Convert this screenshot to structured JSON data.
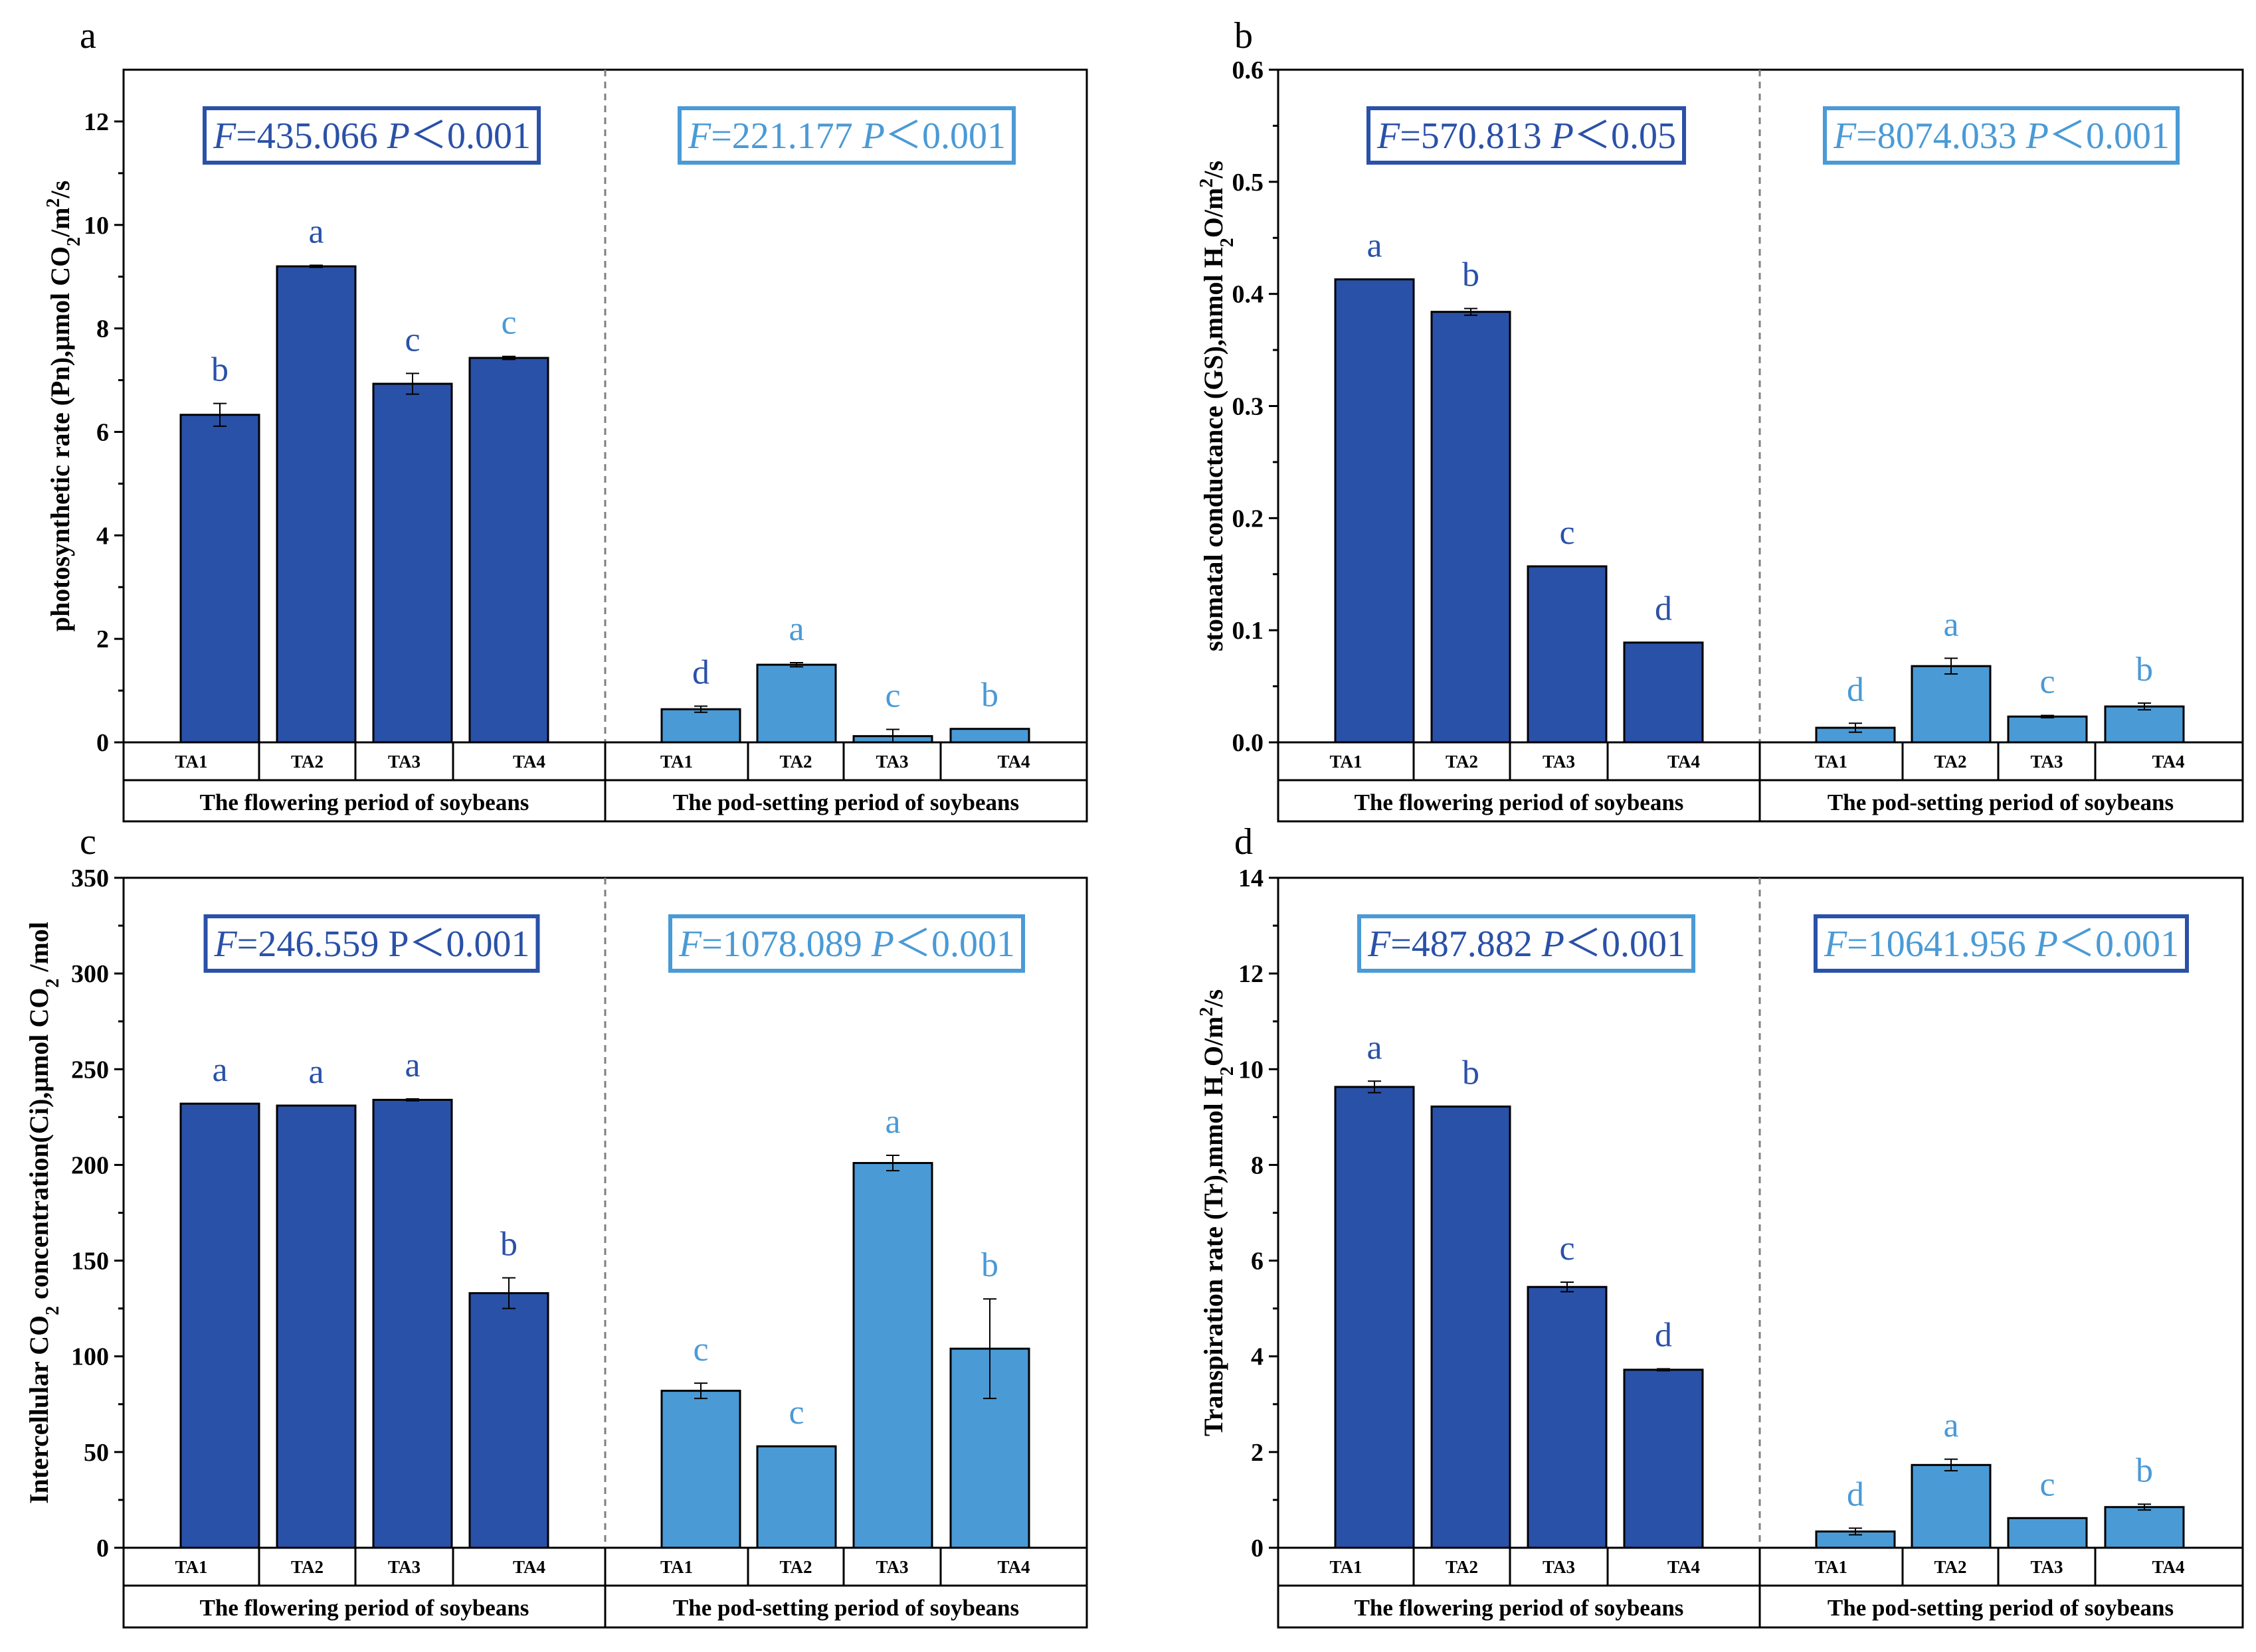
{
  "colors": {
    "flowering": "#2a51a8",
    "podsetting": "#4a9ad6",
    "axis": "#000000",
    "divider": "#7f7f7f"
  },
  "chart_data": [
    {
      "panel_label": "a",
      "type": "bar",
      "ylabel": [
        "photosynthetic rate (Pn),",
        "μmol CO",
        "2",
        "/m",
        "2",
        "/s"
      ],
      "ylim": [
        0,
        13
      ],
      "yticks": [
        "0",
        "2",
        "4",
        "6",
        "8",
        "10",
        "12"
      ],
      "period_labels": [
        "The flowering period of soybeans",
        "The pod-setting period of soybeans"
      ],
      "groups": [
        {
          "stat": {
            "F": "F",
            "Fval": "=435.066 ",
            "P": "P",
            "Pval": "＜0.001",
            "color": "#2a51a8"
          },
          "categories": [
            "TA1",
            "TA2",
            "TA3",
            "TA4"
          ],
          "values": [
            6.33,
            9.2,
            6.93,
            7.43
          ],
          "errors": [
            0.22,
            0.02,
            0.2,
            0.03
          ],
          "letters": [
            "b",
            "a",
            "c",
            "c"
          ],
          "letter_colors": [
            "#2a51a8",
            "#2a51a8",
            "#2a51a8",
            "#4a9ad6"
          ]
        },
        {
          "stat": {
            "F": "F",
            "Fval": "=221.177 ",
            "P": "P",
            "Pval": "＜0.001",
            "color": "#4a9ad6"
          },
          "categories": [
            "TA1",
            "TA2",
            "TA3",
            "TA4"
          ],
          "values": [
            0.64,
            1.5,
            0.12,
            0.26
          ],
          "errors": [
            0.06,
            0.04,
            0.13,
            0.0
          ],
          "letters": [
            "d",
            "a",
            "c",
            "b"
          ],
          "letter_colors": [
            "#2a51a8",
            "#4a9ad6",
            "#4a9ad6",
            "#4a9ad6"
          ]
        }
      ]
    },
    {
      "panel_label": "b",
      "type": "bar",
      "ylabel": [
        "stomatal conductance (GS),",
        "mmol H",
        "2",
        "O/m",
        "2",
        "/s"
      ],
      "ylim": [
        0,
        0.6
      ],
      "yticks": [
        "0.0",
        "0.1",
        "0.2",
        "0.3",
        "0.4",
        "0.5",
        "0.6"
      ],
      "period_labels": [
        "The flowering period of soybeans",
        "The pod-setting period of soybeans"
      ],
      "groups": [
        {
          "stat": {
            "F": "F",
            "Fval": "=570.813 ",
            "P": "P",
            "Pval": "＜0.05",
            "color": "#2a51a8"
          },
          "categories": [
            "TA1",
            "TA2",
            "TA3",
            "TA4"
          ],
          "values": [
            0.413,
            0.384,
            0.157,
            0.089
          ],
          "errors": [
            0.0,
            0.003,
            0.0,
            0.0
          ],
          "letters": [
            "a",
            "b",
            "c",
            "d"
          ],
          "letter_colors": [
            "#2a51a8",
            "#2a51a8",
            "#2a51a8",
            "#2a51a8"
          ]
        },
        {
          "stat": {
            "F": "F",
            "Fval": "=8074.033 ",
            "P": "P",
            "Pval": "＜0.001",
            "color": "#4a9ad6"
          },
          "categories": [
            "TA1",
            "TA2",
            "TA3",
            "TA4"
          ],
          "values": [
            0.013,
            0.068,
            0.023,
            0.032
          ],
          "errors": [
            0.004,
            0.007,
            0.001,
            0.003
          ],
          "letters": [
            "d",
            "a",
            "c",
            "b"
          ],
          "letter_colors": [
            "#4a9ad6",
            "#4a9ad6",
            "#4a9ad6",
            "#4a9ad6"
          ]
        }
      ]
    },
    {
      "panel_label": "c",
      "type": "bar",
      "ylabel": [
        "Intercellular CO",
        "2",
        " concentration(Ci),",
        "μmol CO",
        "2",
        " /mol"
      ],
      "ylim": [
        0,
        350
      ],
      "yticks": [
        "0",
        "50",
        "100",
        "150",
        "200",
        "250",
        "300",
        "350"
      ],
      "period_labels": [
        "The flowering period of soybeans",
        "The pod-setting period of soybeans"
      ],
      "groups": [
        {
          "stat": {
            "F": "F",
            "Fval": "=246.559 ",
            "P": "P",
            "Pval": "＜0.001",
            "color": "#2a51a8",
            "p_upright": true
          },
          "categories": [
            "TA1",
            "TA2",
            "TA3",
            "TA4"
          ],
          "values": [
            232,
            231,
            234,
            133
          ],
          "errors": [
            0,
            0,
            0.5,
            8
          ],
          "letters": [
            "a",
            "a",
            "a",
            "b"
          ],
          "letter_colors": [
            "#2a51a8",
            "#2a51a8",
            "#2a51a8",
            "#2a51a8"
          ]
        },
        {
          "stat": {
            "F": "F",
            "Fval": "=1078.089 ",
            "P": "P",
            "Pval": "＜0.001",
            "color": "#4a9ad6"
          },
          "categories": [
            "TA1",
            "TA2",
            "TA3",
            "TA4"
          ],
          "values": [
            82,
            53,
            201,
            104
          ],
          "errors": [
            4,
            0,
            4,
            26
          ],
          "letters": [
            "c",
            "c",
            "a",
            "b"
          ],
          "letter_colors": [
            "#4a9ad6",
            "#4a9ad6",
            "#4a9ad6",
            "#4a9ad6"
          ]
        }
      ]
    },
    {
      "panel_label": "d",
      "type": "bar",
      "ylabel": [
        "Transpiration rate (Tr),",
        "mmol H",
        "2",
        "O/m",
        "2",
        "/s"
      ],
      "ylim": [
        0,
        14
      ],
      "yticks": [
        "0",
        "2",
        "4",
        "6",
        "8",
        "10",
        "12",
        "14"
      ],
      "period_labels": [
        "The flowering period of soybeans",
        "The pod-setting period of soybeans"
      ],
      "groups": [
        {
          "stat": {
            "F": "F",
            "Fval": "=487.882 ",
            "P": "P",
            "Pval": "＜0.001",
            "color": "#4a9ad6",
            "text_color": "#2a51a8"
          },
          "categories": [
            "TA1",
            "TA2",
            "TA3",
            "TA4"
          ],
          "values": [
            9.63,
            9.22,
            5.45,
            3.72
          ],
          "errors": [
            0.12,
            0.0,
            0.1,
            0.02
          ],
          "letters": [
            "a",
            "b",
            "c",
            "d"
          ],
          "letter_colors": [
            "#2a51a8",
            "#2a51a8",
            "#2a51a8",
            "#2a51a8"
          ]
        },
        {
          "stat": {
            "F": "F",
            "Fval": "=10641.956 ",
            "P": "P",
            "Pval": "＜0.001",
            "color": "#2a51a8",
            "text_color": "#4a9ad6"
          },
          "categories": [
            "TA1",
            "TA2",
            "TA3",
            "TA4"
          ],
          "values": [
            0.34,
            1.73,
            0.62,
            0.85
          ],
          "errors": [
            0.07,
            0.12,
            0.0,
            0.06
          ],
          "letters": [
            "d",
            "a",
            "c",
            "b"
          ],
          "letter_colors": [
            "#4a9ad6",
            "#4a9ad6",
            "#4a9ad6",
            "#4a9ad6"
          ]
        }
      ]
    }
  ]
}
